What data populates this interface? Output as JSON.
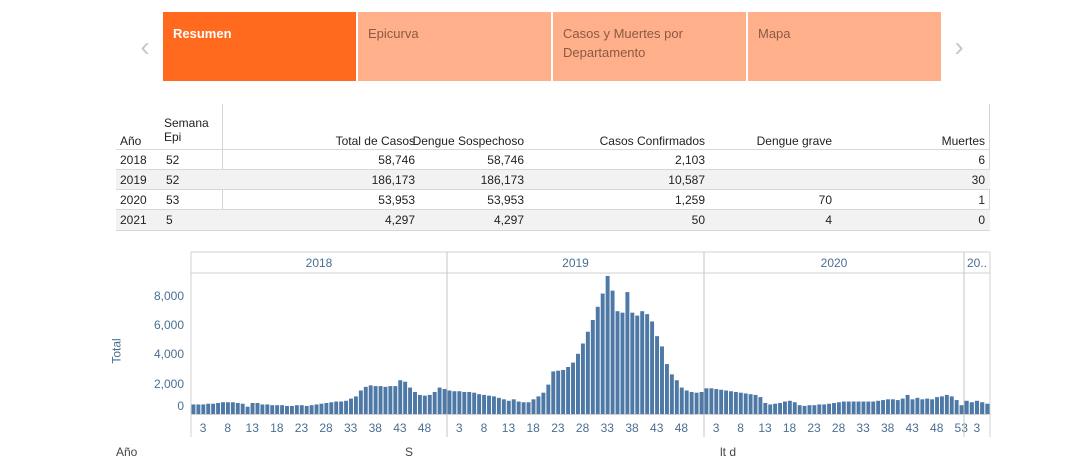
{
  "nav": {
    "prev_arrow": "‹",
    "next_arrow": "›",
    "tabs": [
      {
        "label": "Resumen"
      },
      {
        "label": "Epicurva"
      },
      {
        "label": "Casos y Muertes por Departamento"
      },
      {
        "label": "Mapa"
      }
    ]
  },
  "table": {
    "headers": {
      "year": "Año",
      "week_line1": "Semana",
      "week_line2": "Epi",
      "total": "Total de Casos",
      "suspected": "Dengue Sospechoso",
      "confirmed": "Casos Confirmados",
      "severe": "Dengue grave",
      "deaths": "Muertes"
    },
    "rows": [
      {
        "year": "2018",
        "week": "52",
        "total": "58,746",
        "suspected": "58,746",
        "confirmed": "2,103",
        "severe": "",
        "deaths": "6"
      },
      {
        "year": "2019",
        "week": "52",
        "total": "186,173",
        "suspected": "186,173",
        "confirmed": "10,587",
        "severe": "",
        "deaths": "30"
      },
      {
        "year": "2020",
        "week": "53",
        "total": "53,953",
        "suspected": "53,953",
        "confirmed": "1,259",
        "severe": "70",
        "deaths": "1"
      },
      {
        "year": "2021",
        "week": "5",
        "total": "4,297",
        "suspected": "4,297",
        "confirmed": "50",
        "severe": "4",
        "deaths": "0"
      }
    ]
  },
  "chart_data": {
    "type": "bar",
    "ylabel": "Total",
    "ylim": [
      0,
      9600
    ],
    "yticks": [
      "0",
      "2,000",
      "4,000",
      "6,000",
      "8,000"
    ],
    "bar_color": "#4e79a7",
    "panels": [
      {
        "year": "2018",
        "weeks": 52,
        "xticks": [
          "3",
          "8",
          "13",
          "18",
          "23",
          "28",
          "33",
          "38",
          "43",
          "48"
        ],
        "values": [
          650,
          650,
          650,
          700,
          700,
          750,
          800,
          800,
          800,
          750,
          700,
          500,
          750,
          750,
          650,
          650,
          600,
          600,
          600,
          550,
          550,
          600,
          600,
          550,
          600,
          650,
          700,
          750,
          800,
          850,
          850,
          900,
          1050,
          1200,
          1600,
          1850,
          1950,
          1900,
          1900,
          1850,
          1900,
          1900,
          2300,
          2200,
          1800,
          1500,
          1300,
          1250,
          1300,
          1500,
          1800,
          1700
        ]
      },
      {
        "year": "2019",
        "weeks": 52,
        "xticks": [
          "3",
          "8",
          "13",
          "18",
          "23",
          "28",
          "33",
          "38",
          "43",
          "48"
        ],
        "values": [
          1600,
          1550,
          1550,
          1500,
          1500,
          1450,
          1350,
          1300,
          1250,
          1200,
          1100,
          1000,
          900,
          1000,
          850,
          800,
          800,
          1000,
          1200,
          1450,
          2000,
          2900,
          2950,
          3000,
          3200,
          3500,
          4100,
          4800,
          5600,
          6400,
          7300,
          8200,
          9400,
          8400,
          7000,
          6900,
          8300,
          6900,
          6700,
          7000,
          6800,
          6300,
          5300,
          4600,
          3400,
          2700,
          2300,
          1800,
          1600,
          1500,
          1450,
          1500
        ]
      },
      {
        "year": "2020",
        "weeks": 53,
        "xticks": [
          "3",
          "8",
          "13",
          "18",
          "23",
          "28",
          "33",
          "38",
          "43",
          "48",
          "53"
        ],
        "values": [
          1750,
          1750,
          1700,
          1650,
          1600,
          1550,
          1500,
          1450,
          1400,
          1350,
          1300,
          1150,
          750,
          650,
          700,
          750,
          850,
          900,
          800,
          600,
          550,
          600,
          600,
          650,
          650,
          700,
          750,
          800,
          850,
          850,
          850,
          850,
          850,
          850,
          850,
          900,
          950,
          1000,
          1000,
          950,
          1050,
          1300,
          1000,
          1100,
          1000,
          1050,
          1000,
          1150,
          1200,
          1300,
          1200,
          950,
          600
        ]
      },
      {
        "year": "20..",
        "weeks": 5,
        "xticks": [
          "3"
        ],
        "values": [
          900,
          800,
          900,
          800,
          700
        ]
      }
    ]
  },
  "footer_partial": {
    "a": "Año",
    "b": "S",
    "c": "lt d"
  }
}
